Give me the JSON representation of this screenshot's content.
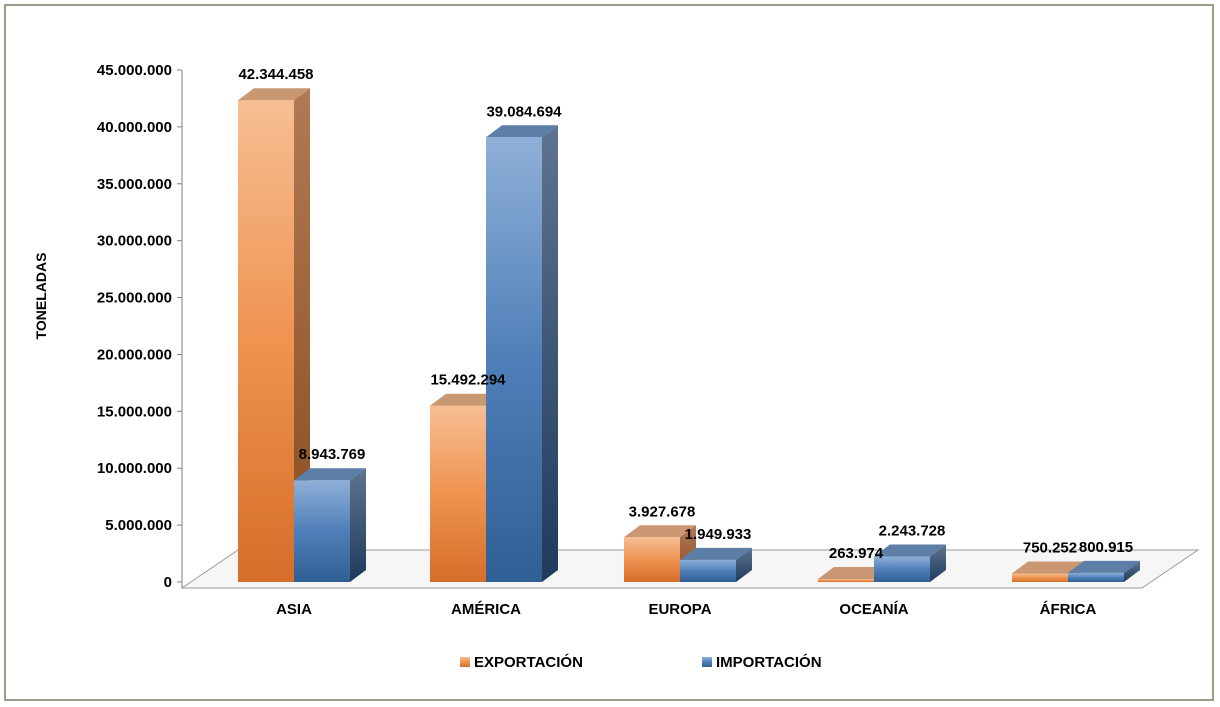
{
  "chart_data": {
    "type": "bar",
    "categories": [
      "ASIA",
      "AMÉRICA",
      "EUROPA",
      "OCEANÍA",
      "ÁFRICA"
    ],
    "series": [
      {
        "name": "EXPORTACIÓN",
        "color": "#e8894a",
        "values": [
          42344458,
          15492294,
          3927678,
          263974,
          750252
        ],
        "labels": [
          "42.344.458",
          "15.492.294",
          "3.927.678",
          "263.974",
          "750.252"
        ]
      },
      {
        "name": "IMPORTACIÓN",
        "color": "#3f6fa8",
        "values": [
          8943769,
          39084694,
          1949933,
          2243728,
          800915
        ],
        "labels": [
          "8.943.769",
          "39.084.694",
          "1.949.933",
          "2.243.728",
          "800.915"
        ]
      }
    ],
    "ylabel": "TONELADAS",
    "xlabel": "",
    "ylim": [
      0,
      45000000
    ],
    "yticks": [
      0,
      5000000,
      10000000,
      15000000,
      20000000,
      25000000,
      30000000,
      35000000,
      40000000,
      45000000
    ],
    "ytick_labels": [
      "0",
      "5.000.000",
      "10.000.000",
      "15.000.000",
      "20.000.000",
      "25.000.000",
      "30.000.000",
      "35.000.000",
      "40.000.000",
      "45.000.000"
    ],
    "legend_position": "bottom",
    "style": "3d-column"
  }
}
